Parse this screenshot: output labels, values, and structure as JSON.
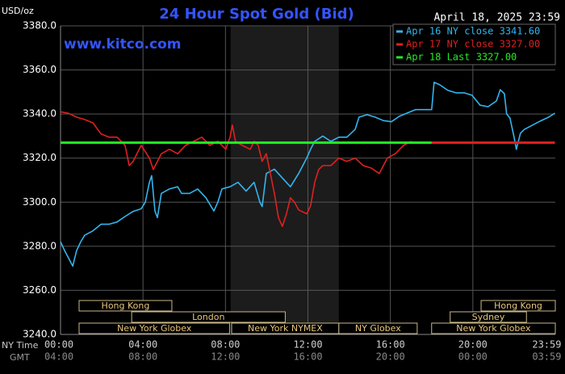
{
  "chart_data": {
    "type": "line",
    "title": "24 Hour Spot Gold (Bid)",
    "subtitle": "April 18, 2025 23:59",
    "y_label": "USD/oz",
    "watermark": "www.kitco.com",
    "x_label": "NY Time",
    "x2_label": "GMT",
    "xlim": [
      0,
      24
    ],
    "ylim": [
      3240,
      3380
    ],
    "grid": true,
    "legend": "upper right",
    "shaded_range": [
      8.25,
      13.5
    ],
    "yticks": [
      {
        "value": 3240,
        "label": "3240.0"
      },
      {
        "value": 3260,
        "label": "3260.0"
      },
      {
        "value": 3280,
        "label": "3280.0"
      },
      {
        "value": 3300,
        "label": "3300.0"
      },
      {
        "value": 3320,
        "label": "3320.0"
      },
      {
        "value": 3340,
        "label": "3340.0"
      },
      {
        "value": 3360,
        "label": "3360.0"
      },
      {
        "value": 3380,
        "label": "3380.0"
      }
    ],
    "xticks": [
      {
        "value": 0,
        "label": "00:00"
      },
      {
        "value": 4,
        "label": "04:00"
      },
      {
        "value": 8,
        "label": "08:00"
      },
      {
        "value": 12,
        "label": "12:00"
      },
      {
        "value": 16,
        "label": "16:00"
      },
      {
        "value": 20,
        "label": "20:00"
      },
      {
        "value": 23.98,
        "label": "23:59"
      }
    ],
    "x2ticks": [
      {
        "value": 0,
        "label": "04:00"
      },
      {
        "value": 4,
        "label": "08:00"
      },
      {
        "value": 8,
        "label": "12:00"
      },
      {
        "value": 12,
        "label": "16:00"
      },
      {
        "value": 16,
        "label": "20:00"
      },
      {
        "value": 20,
        "label": "00:00"
      },
      {
        "value": 23.98,
        "label": "03:59"
      }
    ],
    "sessions": [
      {
        "label": "Hong Kong",
        "start": 0.9,
        "end": 5.4,
        "row": 1
      },
      {
        "label": "London",
        "start": 3.45,
        "end": 10.9,
        "row": 2
      },
      {
        "label": "New York Globex",
        "start": 0.9,
        "end": 8.2,
        "row": 3
      },
      {
        "label": "New York NYMEX",
        "start": 8.3,
        "end": 13.5,
        "row": 3
      },
      {
        "label": "NY Globex",
        "start": 13.5,
        "end": 17.3,
        "row": 3
      },
      {
        "label": "Hong Kong",
        "start": 20.4,
        "end": 24,
        "row": 1
      },
      {
        "label": "Sydney",
        "start": 18.9,
        "end": 22.6,
        "row": 2
      },
      {
        "label": "New York Globex",
        "start": 18,
        "end": 24,
        "row": 3
      }
    ],
    "series": [
      {
        "name": "Apr 16 NY close 3341.60",
        "color": "#33b5ee",
        "width": 1.6,
        "x": [
          0,
          0.2,
          0.59,
          0.78,
          0.98,
          1.17,
          1.57,
          1.96,
          2.35,
          2.74,
          3.13,
          3.52,
          3.91,
          4.11,
          4.31,
          4.42,
          4.58,
          4.7,
          4.89,
          5.28,
          5.68,
          5.87,
          6.26,
          6.65,
          7.05,
          7.44,
          7.63,
          7.83,
          8.22,
          8.61,
          9.0,
          9.39,
          9.67,
          9.78,
          9.98,
          10.37,
          10.76,
          11.15,
          11.55,
          11.94,
          12.13,
          12.33,
          12.72,
          13.11,
          13.5,
          13.89,
          14.29,
          14.48,
          14.87,
          15.26,
          15.66,
          16.05,
          16.44,
          16.83,
          17.22,
          18.0,
          18.12,
          18.39,
          18.79,
          19.18,
          19.57,
          19.96,
          20.35,
          20.74,
          21.14,
          21.33,
          21.53,
          21.64,
          21.8,
          22.0,
          22.11,
          22.31,
          22.5,
          22.9,
          23.29,
          23.68,
          23.98
        ],
        "values": [
          3282,
          3278,
          3271,
          3278,
          3282,
          3285,
          3287,
          3290,
          3290,
          3291,
          3293.5,
          3295.8,
          3297,
          3300,
          3309,
          3312,
          3296,
          3293,
          3304,
          3306,
          3307,
          3304,
          3304,
          3306,
          3302,
          3296,
          3300,
          3306,
          3307,
          3309,
          3305,
          3309,
          3300,
          3298,
          3313,
          3315,
          3311,
          3307,
          3313,
          3320,
          3324,
          3327.6,
          3330,
          3327.6,
          3329.5,
          3329.5,
          3333,
          3338.6,
          3339.7,
          3338.6,
          3337,
          3336.5,
          3339,
          3340.5,
          3342,
          3342,
          3354.4,
          3353.3,
          3350.7,
          3349.6,
          3349.6,
          3348.5,
          3344,
          3343.3,
          3345.9,
          3351,
          3349.2,
          3340,
          3338.2,
          3329.5,
          3324,
          3331.3,
          3333,
          3335,
          3336.9,
          3338.6,
          3340.4
        ]
      },
      {
        "name": "Apr 17 NY close 3327.00",
        "color": "#e02020",
        "width": 1.6,
        "x": [
          0,
          0.39,
          0.78,
          1.17,
          1.57,
          1.96,
          2.35,
          2.74,
          2.94,
          3.13,
          3.33,
          3.52,
          3.91,
          4.31,
          4.5,
          4.89,
          5.28,
          5.68,
          6.07,
          6.46,
          6.85,
          7.24,
          7.63,
          8.02,
          8.22,
          8.33,
          8.49,
          8.81,
          9.2,
          9.39,
          9.59,
          9.78,
          9.98,
          10.18,
          10.37,
          10.57,
          10.76,
          10.96,
          11.15,
          11.35,
          11.55,
          11.94,
          12.13,
          12.33,
          12.52,
          12.72,
          13.11,
          13.5,
          13.89,
          14.29,
          14.68,
          15.07,
          15.46,
          15.66,
          15.85,
          16.24,
          16.64,
          17.03,
          17.5,
          18,
          23.98
        ],
        "values": [
          3341,
          3340.3,
          3338.6,
          3337.5,
          3336,
          3331,
          3329.5,
          3329.5,
          3327.6,
          3325.8,
          3316.6,
          3318.5,
          3325.8,
          3320,
          3314.8,
          3322,
          3324,
          3322,
          3325.8,
          3327.6,
          3329.5,
          3325.8,
          3327.6,
          3324,
          3329.5,
          3335,
          3327.6,
          3325.8,
          3324,
          3327.6,
          3325.8,
          3318.5,
          3322,
          3313,
          3304,
          3293,
          3289,
          3294.7,
          3302,
          3300,
          3296.5,
          3294.7,
          3298.4,
          3309,
          3314.8,
          3316.6,
          3316.6,
          3320,
          3318.5,
          3320,
          3316.6,
          3315.5,
          3313,
          3316.6,
          3320,
          3322,
          3325.8,
          3327.6,
          null,
          3327,
          3327
        ]
      },
      {
        "name": "Apr 18 Last 3327.00",
        "color": "#22ee22",
        "width": 3,
        "x": [
          0,
          18
        ],
        "values": [
          3327,
          3327
        ]
      }
    ]
  }
}
